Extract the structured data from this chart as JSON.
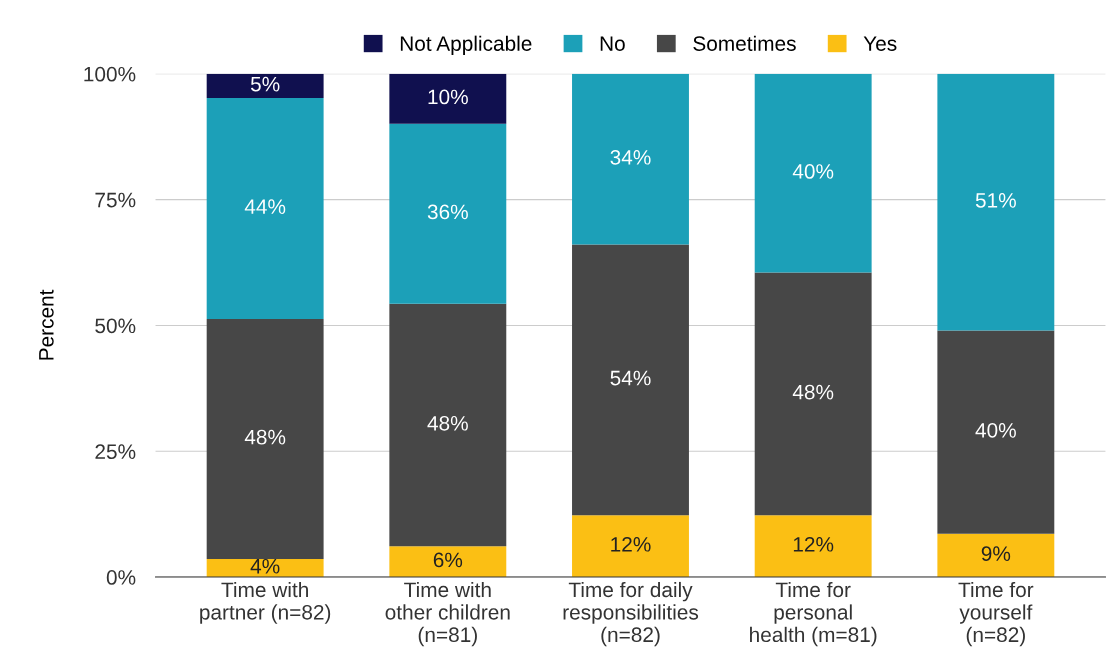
{
  "chart_data": {
    "type": "bar",
    "stacked": true,
    "ylabel": "Percent",
    "categories": [
      "Time with\npartner (n=82)",
      "Time with\nother children\n(n=81)",
      "Time for daily\nresponsibilities\n(n=82)",
      "Time for\npersonal\nhealth (m=81)",
      "Time for\nyourself\n(n=82)"
    ],
    "series": [
      {
        "name": "Yes",
        "color": "#fbbf14",
        "values": [
          3.6,
          6.1,
          12.3,
          12.3,
          8.6
        ],
        "value_labels": [
          "4%",
          "6%",
          "12%",
          "12%",
          "9%"
        ]
      },
      {
        "name": "Sometimes",
        "color": "#474747",
        "values": [
          47.7,
          48.2,
          53.8,
          48.2,
          40.4
        ],
        "value_labels": [
          "48%",
          "48%",
          "54%",
          "48%",
          "40%"
        ]
      },
      {
        "name": "No",
        "color": "#1ca0b8",
        "values": [
          43.9,
          35.8,
          33.9,
          39.5,
          51.0
        ],
        "value_labels": [
          "44%",
          "36%",
          "34%",
          "40%",
          "51%"
        ]
      },
      {
        "name": "Not Applicable",
        "color": "#10104f",
        "values": [
          4.8,
          9.9,
          null,
          null,
          null
        ],
        "value_labels": [
          "5%",
          "10%",
          null,
          null,
          null
        ]
      }
    ],
    "ylim": [
      0,
      100
    ],
    "yticks": [
      {
        "value": 0,
        "label": "0%"
      },
      {
        "value": 25,
        "label": "25%"
      },
      {
        "value": 50,
        "label": "50%"
      },
      {
        "value": 75,
        "label": "75%"
      },
      {
        "value": 100,
        "label": "100%"
      }
    ],
    "grid": "y",
    "legend": "top"
  }
}
